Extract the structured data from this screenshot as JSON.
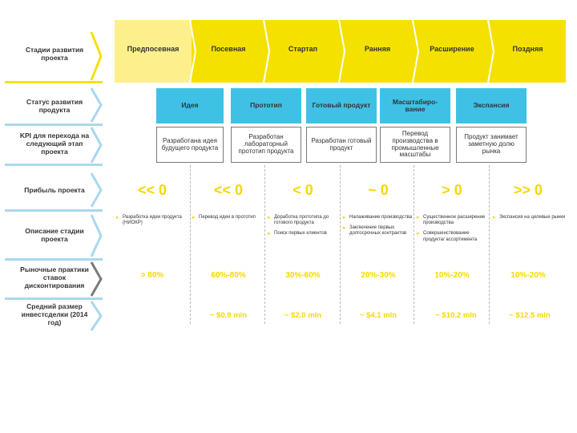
{
  "rows": {
    "stages_label": "Стадии развития проекта",
    "status_label": "Статус развития продукта",
    "kpi_label": "KPI для перехода на следующий этап проекта",
    "profit_label": "Прибыль проекта",
    "description_label": "Описание стадии проекта",
    "discount_label": "Рыночные практики ставок дисконтирования",
    "investment_label": "Средний размер инвестсделки (2014 год)"
  },
  "stages": [
    {
      "name": "Предпосевная",
      "color": "#fdf08c"
    },
    {
      "name": "Посевная",
      "color": "#f5e100"
    },
    {
      "name": "Стартап",
      "color": "#f5e100"
    },
    {
      "name": "Ранняя",
      "color": "#f5e100"
    },
    {
      "name": "Расширение",
      "color": "#f5e100"
    },
    {
      "name": "Поздняя",
      "color": "#f5e100"
    }
  ],
  "statuses": [
    {
      "label": "Идея",
      "kpi": "Разработана идея будущего продукта"
    },
    {
      "label": "Прототип",
      "kpi": "Разработан лабораторный прототип продукта"
    },
    {
      "label": "Готовый продукт",
      "kpi": "Разработан готовый продукт"
    },
    {
      "label": "Масштабиро-вание",
      "kpi": "Перевод производства в промышленные масштабы"
    },
    {
      "label": "Экспансия",
      "kpi": "Продукт занимает заметную долю рынка"
    }
  ],
  "profit": [
    "<< 0",
    "<< 0",
    "< 0",
    "~ 0",
    "> 0",
    ">> 0"
  ],
  "descriptions": [
    [
      "Разработка идеи продукта (НИОКР)"
    ],
    [
      "Перевод идеи в прототип"
    ],
    [
      "Доработка прототипа до готового продукта",
      "Поиск первых клиентов"
    ],
    [
      "Налаживание производства",
      "Заключение первых долгосрочных контрактов"
    ],
    [
      "Существенное расширение производства",
      "Совершенствование продукта/ ассортимента"
    ],
    [
      "Экспансия на целевые рынки"
    ]
  ],
  "discount_rates": [
    "> 80%",
    "60%-80%",
    "30%-60%",
    "20%-30%",
    "10%-20%",
    "10%-20%"
  ],
  "investment_sizes": [
    "",
    "~ $0.9 mln",
    "~ $2.0 mln",
    "~ $4.1 mln",
    "~ $10.2 mln",
    "~ $12.5 mln"
  ],
  "colors": {
    "accent_yellow": "#f5e100",
    "light_yellow": "#fdf08c",
    "cyan": "#3fc1e6",
    "blue_chevron": "#a9d8ee"
  }
}
